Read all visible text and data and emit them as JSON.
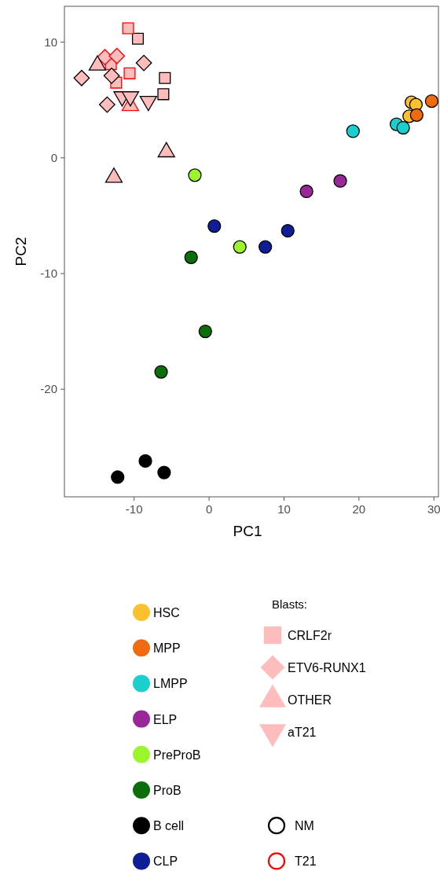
{
  "chart_data": {
    "type": "scatter",
    "xlabel": "PC1",
    "ylabel": "PC2",
    "xlim": [
      -19.3,
      30.6
    ],
    "ylim": [
      -29.3,
      13.1
    ],
    "xticks": [
      -10,
      0,
      10,
      20,
      30
    ],
    "yticks": [
      10,
      0,
      -10,
      -20
    ],
    "grid": false,
    "legend": "bottom",
    "legend_title": "Blasts:",
    "marker": "circle",
    "series": [
      {
        "name": "HSC",
        "color": "#fbc02d",
        "x": [
          27.0,
          27.6,
          26.7
        ],
        "values": [
          4.8,
          4.6,
          3.6
        ]
      },
      {
        "name": "MPP",
        "color": "#f06a10",
        "x": [
          29.7,
          27.7
        ],
        "values": [
          4.9,
          3.7
        ]
      },
      {
        "name": "LMPP",
        "color": "#1ccfcf",
        "x": [
          19.2,
          25.0,
          25.9
        ],
        "values": [
          2.3,
          2.9,
          2.6
        ]
      },
      {
        "name": "ELP",
        "color": "#99279a",
        "x": [
          13.0,
          17.5
        ],
        "values": [
          -2.9,
          -2.0
        ]
      },
      {
        "name": "PreProB",
        "color": "#9cf52c",
        "x": [
          -1.9,
          4.1
        ],
        "values": [
          -1.5,
          -7.7
        ]
      },
      {
        "name": "ProB",
        "color": "#0b6e0b",
        "x": [
          -2.4,
          -0.5,
          -6.4
        ],
        "values": [
          -8.6,
          -15.0,
          -18.5
        ]
      },
      {
        "name": "B cell",
        "color": "#000000",
        "x": [
          -12.2,
          -8.5,
          -6.0
        ],
        "values": [
          -27.6,
          -26.2,
          -27.2
        ]
      },
      {
        "name": "CLP",
        "color": "#0f1e96",
        "x": [
          0.7,
          7.5,
          10.5
        ],
        "values": [
          -5.9,
          -7.7,
          -6.3
        ]
      },
      {
        "name": "CRLF2r",
        "marker": "square",
        "color": "#ffbcbc",
        "x": [
          -9.5,
          -5.9,
          -6.1
        ],
        "values": [
          10.3,
          6.9,
          5.5
        ]
      },
      {
        "marker": "square",
        "color": "#ffbcbc",
        "x": [
          -10.8,
          -10.6,
          -12.4,
          -13.1
        ],
        "values": [
          11.2,
          7.3,
          6.5,
          8.1
        ]
      },
      {
        "name": "ETV6-RUNX1",
        "marker": "diamond",
        "color": "#ffbcbc",
        "x": [
          -8.7,
          -17.0,
          -13.0,
          -13.6
        ],
        "values": [
          8.2,
          6.9,
          7.1,
          4.6
        ]
      },
      {
        "marker": "diamond",
        "color": "#ffbcbc",
        "x": [
          -13.9,
          -12.3
        ],
        "values": [
          8.7,
          8.8
        ]
      },
      {
        "name": "OTHER",
        "marker": "triangle",
        "color": "#ffbcbc",
        "x": [
          -14.9,
          -5.7,
          -12.7
        ],
        "values": [
          8.0,
          0.5,
          -1.7
        ]
      },
      {
        "marker": "triangle",
        "color": "#ffbcbc",
        "x": [
          -10.5
        ],
        "values": [
          4.5
        ]
      },
      {
        "name": "aT21",
        "marker": "triangle-down",
        "color": "#ffbcbc",
        "x": [
          -11.6,
          -10.5,
          -8.1
        ],
        "values": [
          5.3,
          5.3,
          4.9
        ]
      },
      {
        "name": "NM",
        "color": "#000000"
      },
      {
        "name": "T21",
        "color": "#ff0000"
      }
    ]
  }
}
